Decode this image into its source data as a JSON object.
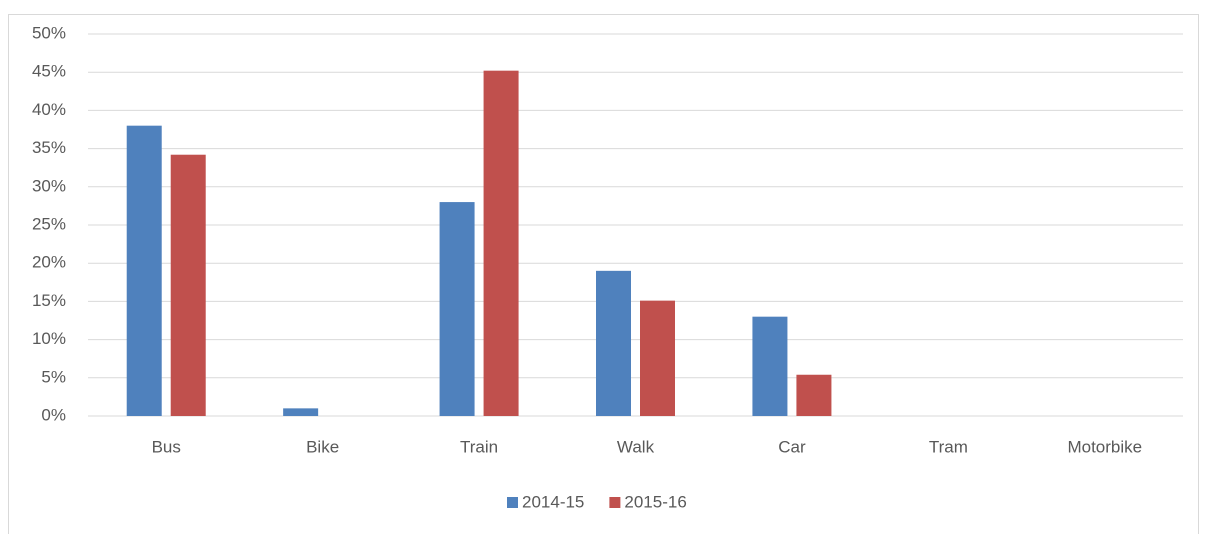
{
  "chart_data": {
    "type": "bar",
    "categories": [
      "Bus",
      "Bike",
      "Train",
      "Walk",
      "Car",
      "Tram",
      "Motorbike"
    ],
    "series": [
      {
        "name": "2014-15",
        "color": "#4f81bd",
        "values": [
          38,
          1,
          28,
          19,
          13,
          0,
          0
        ]
      },
      {
        "name": "2015-16",
        "color": "#c0504d",
        "values": [
          34.2,
          0,
          45.2,
          15.1,
          5.4,
          0,
          0
        ]
      }
    ],
    "ylim": [
      0,
      50
    ],
    "yticks": [
      {
        "value": 0,
        "label": "0%"
      },
      {
        "value": 5,
        "label": "5%"
      },
      {
        "value": 10,
        "label": "10%"
      },
      {
        "value": 15,
        "label": "15%"
      },
      {
        "value": 20,
        "label": "20%"
      },
      {
        "value": 25,
        "label": "25%"
      },
      {
        "value": 30,
        "label": "30%"
      },
      {
        "value": 35,
        "label": "35%"
      },
      {
        "value": 40,
        "label": "40%"
      },
      {
        "value": 45,
        "label": "45%"
      },
      {
        "value": 50,
        "label": "50%"
      }
    ],
    "grid": true,
    "legend": "bottom"
  }
}
